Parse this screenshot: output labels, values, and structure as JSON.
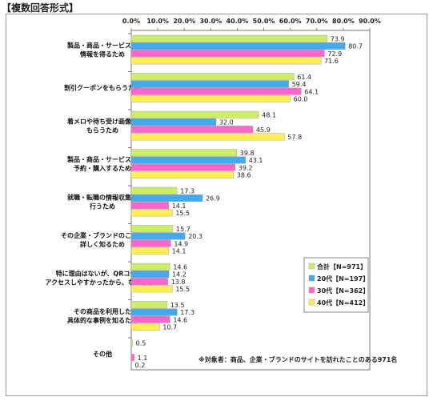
{
  "header": "【複数回答形式】",
  "chart_data": {
    "type": "bar",
    "orientation": "horizontal",
    "xlim": [
      0,
      90
    ],
    "ticks": [
      "0.0%",
      "10.0%",
      "20.0%",
      "30.0%",
      "40.0%",
      "50.0%",
      "60.0%",
      "70.0%",
      "80.0%",
      "90.0%"
    ],
    "tick_values": [
      0,
      10,
      20,
      30,
      40,
      50,
      60,
      70,
      80,
      90
    ],
    "grid": false,
    "legend_position": "right",
    "categories": [
      [
        "製品・商品・サービスの",
        "情報を得るため"
      ],
      [
        "割引クーポンをもらうため"
      ],
      [
        "着メロや待ち受け画像を",
        "もらうため"
      ],
      [
        "製品・商品・サービスを",
        "予約・購入するため"
      ],
      [
        "就職・転職の情報収集を",
        "行うため"
      ],
      [
        "その企業・ブランドのことを",
        "詳しく知るため"
      ],
      [
        "特に理由はないが、QRコードで",
        "アクセスしやすかったから、なんとなく"
      ],
      [
        "その商品を利用した",
        "具体的な事例を知るため"
      ],
      [
        "その他"
      ]
    ],
    "series": [
      {
        "name": "合計【N=971】",
        "color": "#ccee66",
        "values": [
          73.9,
          61.4,
          48.1,
          39.8,
          17.3,
          15.7,
          14.6,
          13.5,
          0.5
        ]
      },
      {
        "name": "20代【N=197】",
        "color": "#44aaee",
        "values": [
          80.7,
          59.4,
          32.0,
          43.1,
          26.9,
          20.3,
          14.2,
          17.3,
          0
        ]
      },
      {
        "name": "30代【N=362】",
        "color": "#ff66cc",
        "values": [
          72.9,
          64.1,
          45.9,
          39.2,
          14.1,
          14.9,
          13.8,
          14.6,
          1.1
        ]
      },
      {
        "name": "40代【N=412】",
        "color": "#ffee55",
        "values": [
          71.6,
          60.0,
          57.8,
          38.6,
          15.5,
          14.1,
          15.5,
          10.7,
          0.2
        ]
      }
    ],
    "value_labels": [
      [
        "73.9",
        "80.7",
        "72.9",
        "71.6"
      ],
      [
        "61.4",
        "59.4",
        "64.1",
        "60.0"
      ],
      [
        "48.1",
        "32.0",
        "45.9",
        "57.8"
      ],
      [
        "39.8",
        "43.1",
        "39.2",
        "38.6"
      ],
      [
        "17.3",
        "26.9",
        "14.1",
        "15.5"
      ],
      [
        "15.7",
        "20.3",
        "14.9",
        "14.1"
      ],
      [
        "14.6",
        "14.2",
        "13.8",
        "15.5"
      ],
      [
        "13.5",
        "17.3",
        "14.6",
        "10.7"
      ],
      [
        "0.5",
        "",
        "1.1",
        "0.2"
      ]
    ],
    "annotation": "※対象者：商品、企業・ブランドのサイトを訪れたことのある971名"
  }
}
